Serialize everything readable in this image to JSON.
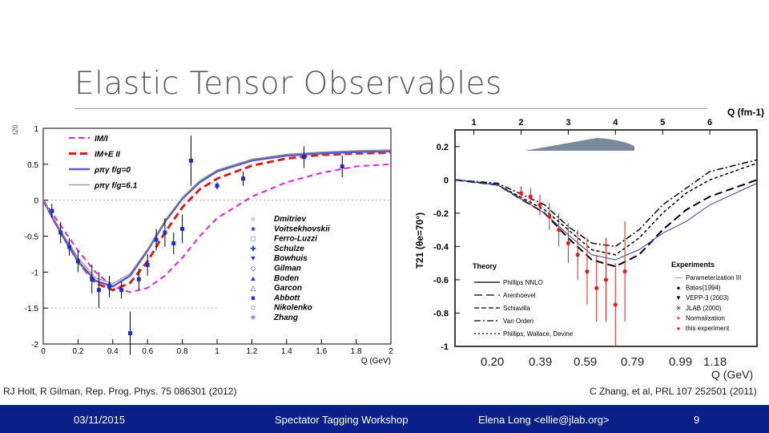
{
  "slide": {
    "title": "Elastic Tensor Observables",
    "ref_left": "RJ Holt, R Gilman, Rep. Prog. Phys. 75 086301 (2012)",
    "ref_right": "C Zhang, et al, PRL 107 252501 (2011)",
    "q_label": "Q (GeV)",
    "bottom_q_ticks": [
      "0.20",
      "0.39",
      "0.59",
      "0.79",
      "0.99",
      "1.18"
    ]
  },
  "footer": {
    "date": "03/11/2015",
    "event": "Spectator Tagging Workshop",
    "author": "Elena Long <ellie@jlab.org>",
    "page": "9"
  },
  "colors": {
    "footer_bg": "#0a1f8a",
    "magenta": "#e020e0",
    "red": "#d42020",
    "blue": "#5b5bc8",
    "gray": "#909090",
    "data_blue": "#1a2fd0",
    "data_red": "#e02020"
  },
  "chart_data": [
    {
      "type": "scatter",
      "ylabel": "t20",
      "xlabel": "Q (GeV)",
      "xlim": [
        0,
        2
      ],
      "ylim": [
        -2,
        1
      ],
      "xticks": [
        "0",
        "0.2",
        "0.4",
        "0.6",
        "0.8",
        "1",
        "1.2",
        "1.4",
        "1.6",
        "1.8",
        "2"
      ],
      "yticks": [
        "-2",
        "-1.5",
        "-1",
        "-0.5",
        "0",
        "0.5",
        "1"
      ],
      "legend": [
        "IM/I",
        "IM+E II",
        "ρπγ f/g=0",
        "ρπγ f/g=6.1"
      ],
      "curves": [
        {
          "name": "IM/I",
          "style": "dashed-magenta",
          "x": [
            0,
            0.1,
            0.2,
            0.3,
            0.4,
            0.5,
            0.6,
            0.7,
            0.8,
            0.9,
            1.0,
            1.2,
            1.4,
            1.6,
            1.8,
            2.0
          ],
          "y": [
            0,
            -0.35,
            -0.7,
            -1.0,
            -1.2,
            -1.28,
            -1.22,
            -1.05,
            -0.8,
            -0.5,
            -0.25,
            0.05,
            0.25,
            0.38,
            0.47,
            0.5
          ]
        },
        {
          "name": "IM+E II",
          "style": "dashed-red",
          "x": [
            0,
            0.1,
            0.2,
            0.3,
            0.4,
            0.5,
            0.6,
            0.7,
            0.8,
            0.9,
            1.0,
            1.2,
            1.4,
            1.6,
            1.8,
            2.0
          ],
          "y": [
            0,
            -0.45,
            -0.85,
            -1.15,
            -1.25,
            -1.15,
            -0.85,
            -0.45,
            -0.1,
            0.15,
            0.3,
            0.48,
            0.58,
            0.63,
            0.65,
            0.66
          ]
        },
        {
          "name": "ρπγ f/g=0",
          "style": "solid-blue",
          "x": [
            0,
            0.1,
            0.2,
            0.3,
            0.4,
            0.5,
            0.6,
            0.7,
            0.8,
            0.9,
            1.0,
            1.2,
            1.4,
            1.6,
            1.8,
            2.0
          ],
          "y": [
            0,
            -0.45,
            -0.85,
            -1.12,
            -1.2,
            -1.05,
            -0.7,
            -0.3,
            0.02,
            0.25,
            0.4,
            0.55,
            0.62,
            0.65,
            0.67,
            0.68
          ]
        },
        {
          "name": "ρπγ f/g=6.1",
          "style": "solid-gray",
          "x": [
            0,
            0.1,
            0.2,
            0.3,
            0.4,
            0.5,
            0.6,
            0.7,
            0.8,
            0.9,
            1.0,
            1.2,
            1.4,
            1.6,
            1.8,
            2.0
          ],
          "y": [
            0,
            -0.42,
            -0.8,
            -1.08,
            -1.16,
            -1.02,
            -0.68,
            -0.28,
            0.04,
            0.27,
            0.42,
            0.57,
            0.64,
            0.67,
            0.69,
            0.7
          ]
        }
      ],
      "experiments": [
        "Dmitriev",
        "Voitsekhovskii",
        "Ferro-Luzzi",
        "Schulze",
        "Bowhuis",
        "Gilman",
        "Boden",
        "Garcon",
        "Abbott",
        "Nikolenko",
        "Zhang"
      ],
      "points": [
        {
          "x": 0.05,
          "y": -0.15,
          "err": 0.1
        },
        {
          "x": 0.1,
          "y": -0.45,
          "err": 0.15
        },
        {
          "x": 0.15,
          "y": -0.65,
          "err": 0.12
        },
        {
          "x": 0.2,
          "y": -0.85,
          "err": 0.15
        },
        {
          "x": 0.28,
          "y": -1.1,
          "err": 0.2
        },
        {
          "x": 0.32,
          "y": -1.25,
          "err": 0.25
        },
        {
          "x": 0.38,
          "y": -1.2,
          "err": 0.15
        },
        {
          "x": 0.45,
          "y": -1.25,
          "err": 0.12
        },
        {
          "x": 0.5,
          "y": -1.85,
          "err": 0.3
        },
        {
          "x": 0.55,
          "y": -1.1,
          "err": 0.15
        },
        {
          "x": 0.6,
          "y": -0.9,
          "err": 0.15
        },
        {
          "x": 0.65,
          "y": -0.55,
          "err": 0.15
        },
        {
          "x": 0.7,
          "y": -0.45,
          "err": 0.2
        },
        {
          "x": 0.75,
          "y": -0.6,
          "err": 0.15
        },
        {
          "x": 0.8,
          "y": -0.4,
          "err": 0.2
        },
        {
          "x": 0.85,
          "y": 0.55,
          "err": 0.35
        },
        {
          "x": 1.0,
          "y": 0.2,
          "err": 0.05
        },
        {
          "x": 1.15,
          "y": 0.3,
          "err": 0.1
        },
        {
          "x": 1.5,
          "y": 0.6,
          "err": 0.15
        },
        {
          "x": 1.72,
          "y": 0.47,
          "err": 0.15
        }
      ]
    },
    {
      "type": "scatter",
      "ylabel": "T21 (θe=70°)",
      "xlabel": "Q (fm-1)",
      "xlim": [
        0.6,
        7
      ],
      "ylim": [
        -1,
        0.3
      ],
      "xticks": [
        "1",
        "2",
        "3",
        "4",
        "5",
        "6"
      ],
      "yticks": [
        "0.2",
        "0",
        "-0.2",
        "-0.4",
        "-0.6",
        "-0.8",
        "-1"
      ],
      "theory_legend": [
        "Phillips NNLO",
        "Arenhoevel",
        "Schiavilla",
        "Van Orden",
        "Phillips, Wallace, Devine"
      ],
      "experiment_legend": [
        "Parameterization III",
        "Bates(1994)",
        "VEPP-3 (2003)",
        "JLAB (2000)",
        "Normalization",
        "this experiment"
      ],
      "legend_titles": [
        "Theory",
        "Experiments"
      ],
      "curves": [
        {
          "name": "Arenhoevel",
          "x": [
            0.6,
            1.5,
            2.5,
            3,
            3.5,
            4,
            4.5,
            5,
            5.5,
            6,
            7
          ],
          "y": [
            0,
            -0.03,
            -0.2,
            -0.35,
            -0.48,
            -0.52,
            -0.45,
            -0.3,
            -0.18,
            -0.1,
            0
          ]
        },
        {
          "name": "Schiavilla",
          "x": [
            0.6,
            1.5,
            2.5,
            3,
            3.5,
            4,
            4.5,
            5,
            5.5,
            6,
            7
          ],
          "y": [
            0,
            -0.03,
            -0.18,
            -0.3,
            -0.42,
            -0.45,
            -0.35,
            -0.2,
            -0.08,
            0,
            0.1
          ]
        },
        {
          "name": "Van Orden",
          "x": [
            0.6,
            1.5,
            2.5,
            3,
            3.5,
            4,
            4.5,
            5,
            5.5,
            6,
            7
          ],
          "y": [
            0,
            -0.02,
            -0.15,
            -0.28,
            -0.38,
            -0.4,
            -0.3,
            -0.15,
            -0.05,
            0.05,
            0.12
          ]
        },
        {
          "name": "Parameterization III",
          "x": [
            0.6,
            1.5,
            2.5,
            3,
            3.5,
            4,
            4.5,
            5,
            5.5,
            6,
            7
          ],
          "y": [
            0,
            -0.03,
            -0.2,
            -0.33,
            -0.45,
            -0.48,
            -0.42,
            -0.32,
            -0.25,
            -0.15,
            -0.02
          ]
        }
      ],
      "points": [
        {
          "x": 2.0,
          "y": -0.08,
          "err": 0.04
        },
        {
          "x": 2.2,
          "y": -0.1,
          "err": 0.05
        },
        {
          "x": 2.4,
          "y": -0.15,
          "err": 0.06
        },
        {
          "x": 2.6,
          "y": -0.22,
          "err": 0.08
        },
        {
          "x": 2.8,
          "y": -0.3,
          "err": 0.1
        },
        {
          "x": 3.0,
          "y": -0.38,
          "err": 0.12
        },
        {
          "x": 3.2,
          "y": -0.45,
          "err": 0.15
        },
        {
          "x": 3.4,
          "y": -0.55,
          "err": 0.2
        },
        {
          "x": 3.6,
          "y": -0.65,
          "err": 0.2
        },
        {
          "x": 3.8,
          "y": -0.6,
          "err": 0.25
        },
        {
          "x": 4.0,
          "y": -0.75,
          "err": 0.25
        },
        {
          "x": 4.2,
          "y": -0.55,
          "err": 0.3
        }
      ]
    }
  ]
}
